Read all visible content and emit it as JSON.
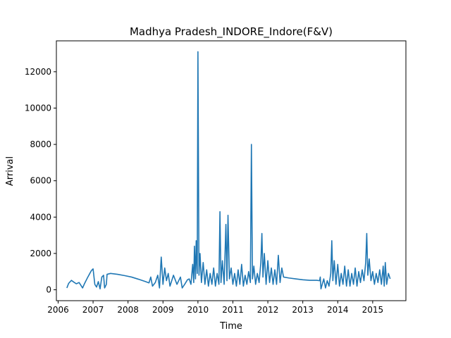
{
  "chart_data": {
    "type": "line",
    "title": "Madhya Pradesh_INDORE_Indore(F&V)",
    "xlabel": "Time",
    "ylabel": "Arrival",
    "xlim": [
      2005.95,
      2015.95
    ],
    "ylim": [
      -600,
      13700
    ],
    "x_ticks": [
      "2006",
      "2007",
      "2008",
      "2009",
      "2010",
      "2011",
      "2012",
      "2013",
      "2014",
      "2015"
    ],
    "y_ticks": [
      0,
      2000,
      4000,
      6000,
      8000,
      10000,
      12000
    ],
    "grid": false,
    "legend": "none",
    "series": [
      {
        "color": "#1f77b4",
        "points": [
          [
            2006.25,
            100
          ],
          [
            2006.3,
            350
          ],
          [
            2006.38,
            520
          ],
          [
            2006.45,
            420
          ],
          [
            2006.52,
            330
          ],
          [
            2006.6,
            400
          ],
          [
            2006.65,
            250
          ],
          [
            2006.7,
            100
          ],
          [
            2006.75,
            320
          ],
          [
            2006.85,
            700
          ],
          [
            2006.95,
            1050
          ],
          [
            2007.0,
            1150
          ],
          [
            2007.05,
            300
          ],
          [
            2007.1,
            150
          ],
          [
            2007.15,
            450
          ],
          [
            2007.2,
            50
          ],
          [
            2007.25,
            700
          ],
          [
            2007.3,
            800
          ],
          [
            2007.33,
            100
          ],
          [
            2007.38,
            300
          ],
          [
            2007.4,
            850
          ],
          [
            2007.5,
            900
          ],
          [
            2007.7,
            850
          ],
          [
            2007.9,
            780
          ],
          [
            2008.1,
            700
          ],
          [
            2008.3,
            580
          ],
          [
            2008.5,
            450
          ],
          [
            2008.6,
            380
          ],
          [
            2008.65,
            700
          ],
          [
            2008.7,
            200
          ],
          [
            2008.78,
            400
          ],
          [
            2008.85,
            800
          ],
          [
            2008.9,
            100
          ],
          [
            2008.95,
            1800
          ],
          [
            2009.0,
            300
          ],
          [
            2009.05,
            1200
          ],
          [
            2009.1,
            500
          ],
          [
            2009.15,
            900
          ],
          [
            2009.2,
            200
          ],
          [
            2009.3,
            800
          ],
          [
            2009.4,
            300
          ],
          [
            2009.5,
            700
          ],
          [
            2009.55,
            100
          ],
          [
            2009.62,
            300
          ],
          [
            2009.7,
            550
          ],
          [
            2009.75,
            600
          ],
          [
            2009.8,
            300
          ],
          [
            2009.85,
            1400
          ],
          [
            2009.88,
            400
          ],
          [
            2009.9,
            2400
          ],
          [
            2009.93,
            600
          ],
          [
            2009.95,
            2700
          ],
          [
            2009.98,
            900
          ],
          [
            2010.0,
            13100
          ],
          [
            2010.03,
            800
          ],
          [
            2010.06,
            2000
          ],
          [
            2010.1,
            400
          ],
          [
            2010.15,
            1500
          ],
          [
            2010.2,
            300
          ],
          [
            2010.25,
            1100
          ],
          [
            2010.3,
            200
          ],
          [
            2010.35,
            900
          ],
          [
            2010.4,
            300
          ],
          [
            2010.45,
            1200
          ],
          [
            2010.5,
            200
          ],
          [
            2010.55,
            900
          ],
          [
            2010.6,
            300
          ],
          [
            2010.63,
            4300
          ],
          [
            2010.66,
            400
          ],
          [
            2010.7,
            1600
          ],
          [
            2010.75,
            300
          ],
          [
            2010.8,
            3600
          ],
          [
            2010.83,
            500
          ],
          [
            2010.86,
            4100
          ],
          [
            2010.9,
            600
          ],
          [
            2010.95,
            1200
          ],
          [
            2011.0,
            300
          ],
          [
            2011.05,
            900
          ],
          [
            2011.1,
            200
          ],
          [
            2011.15,
            1100
          ],
          [
            2011.2,
            300
          ],
          [
            2011.25,
            1400
          ],
          [
            2011.3,
            200
          ],
          [
            2011.35,
            800
          ],
          [
            2011.4,
            300
          ],
          [
            2011.45,
            1000
          ],
          [
            2011.5,
            400
          ],
          [
            2011.53,
            8000
          ],
          [
            2011.56,
            600
          ],
          [
            2011.6,
            1300
          ],
          [
            2011.65,
            300
          ],
          [
            2011.7,
            900
          ],
          [
            2011.75,
            400
          ],
          [
            2011.8,
            1500
          ],
          [
            2011.83,
            3100
          ],
          [
            2011.86,
            700
          ],
          [
            2011.9,
            2000
          ],
          [
            2011.95,
            300
          ],
          [
            2012.0,
            1600
          ],
          [
            2012.05,
            400
          ],
          [
            2012.1,
            1200
          ],
          [
            2012.15,
            300
          ],
          [
            2012.2,
            1100
          ],
          [
            2012.25,
            300
          ],
          [
            2012.3,
            1900
          ],
          [
            2012.35,
            400
          ],
          [
            2012.4,
            1200
          ],
          [
            2012.45,
            700
          ],
          [
            2012.6,
            650
          ],
          [
            2012.8,
            600
          ],
          [
            2013.0,
            550
          ],
          [
            2013.2,
            520
          ],
          [
            2013.4,
            520
          ],
          [
            2013.48,
            500
          ],
          [
            2013.5,
            700
          ],
          [
            2013.52,
            50
          ],
          [
            2013.6,
            600
          ],
          [
            2013.65,
            100
          ],
          [
            2013.7,
            500
          ],
          [
            2013.75,
            200
          ],
          [
            2013.8,
            900
          ],
          [
            2013.83,
            2700
          ],
          [
            2013.86,
            500
          ],
          [
            2013.9,
            1600
          ],
          [
            2013.95,
            300
          ],
          [
            2014.0,
            1400
          ],
          [
            2014.05,
            200
          ],
          [
            2014.1,
            900
          ],
          [
            2014.15,
            300
          ],
          [
            2014.2,
            1300
          ],
          [
            2014.25,
            200
          ],
          [
            2014.3,
            1100
          ],
          [
            2014.35,
            200
          ],
          [
            2014.4,
            900
          ],
          [
            2014.45,
            300
          ],
          [
            2014.5,
            1200
          ],
          [
            2014.55,
            200
          ],
          [
            2014.6,
            1000
          ],
          [
            2014.65,
            400
          ],
          [
            2014.7,
            1100
          ],
          [
            2014.75,
            500
          ],
          [
            2014.8,
            1500
          ],
          [
            2014.83,
            3100
          ],
          [
            2014.86,
            800
          ],
          [
            2014.9,
            1700
          ],
          [
            2014.95,
            500
          ],
          [
            2015.0,
            1000
          ],
          [
            2015.05,
            300
          ],
          [
            2015.1,
            900
          ],
          [
            2015.15,
            400
          ],
          [
            2015.2,
            1100
          ],
          [
            2015.25,
            300
          ],
          [
            2015.3,
            1300
          ],
          [
            2015.33,
            200
          ],
          [
            2015.36,
            1500
          ],
          [
            2015.4,
            300
          ],
          [
            2015.45,
            900
          ],
          [
            2015.5,
            600
          ]
        ]
      }
    ]
  }
}
